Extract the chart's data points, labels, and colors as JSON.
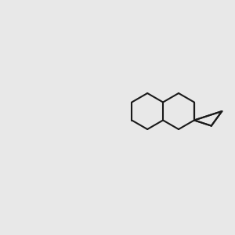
{
  "bg_color": "#e8e8e8",
  "bond_color": "#1a1a1a",
  "o_color": "#dd2200",
  "n_color": "#1a1acc",
  "h_color": "#777777",
  "lw": 1.5,
  "lw2": 2.8
}
